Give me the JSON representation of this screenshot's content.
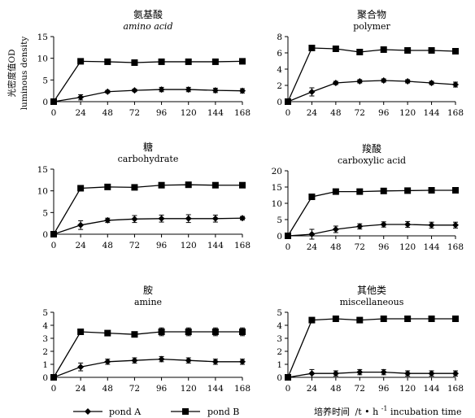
{
  "figure": {
    "y_axis_label_cn": "光密度值OD",
    "y_axis_label_en": "luminous density",
    "x_axis_label_cn": "培养时间",
    "x_axis_label_unit": "/t • h",
    "x_axis_label_sup": "-1",
    "x_axis_label_en": "incubation time"
  },
  "legend": [
    {
      "name": "pond A",
      "marker": "diamond"
    },
    {
      "name": "pond B",
      "marker": "square"
    }
  ],
  "colors": {
    "line": "#000000",
    "background": "#ffffff"
  },
  "chart_data": [
    {
      "type": "line",
      "title_cn": "氨基酸",
      "title_en": "amino acid",
      "title_en_italic": true,
      "x": [
        0,
        24,
        48,
        72,
        96,
        120,
        144,
        168
      ],
      "x_ticks": [
        "0",
        "24",
        "48",
        "72",
        "96",
        "120",
        "144",
        "168"
      ],
      "ylim": [
        0,
        15
      ],
      "y_ticks": [
        "0",
        "5",
        "10",
        "15"
      ],
      "series": [
        {
          "name": "pond A",
          "values": [
            0,
            1.0,
            2.3,
            2.6,
            2.8,
            2.8,
            2.6,
            2.5
          ],
          "errors": [
            0,
            0.6,
            0.3,
            0.3,
            0.5,
            0.5,
            0.5,
            0.5
          ]
        },
        {
          "name": "pond B",
          "values": [
            0,
            9.3,
            9.2,
            9.0,
            9.2,
            9.2,
            9.2,
            9.3
          ],
          "errors": [
            0,
            0.3,
            0.3,
            0.5,
            0.5,
            0.5,
            0.5,
            0.5
          ]
        }
      ]
    },
    {
      "type": "line",
      "title_cn": "聚合物",
      "title_en": "polymer",
      "title_en_italic": false,
      "x": [
        0,
        24,
        48,
        72,
        96,
        120,
        144,
        168
      ],
      "x_ticks": [
        "0",
        "24",
        "48",
        "72",
        "96",
        "120",
        "144",
        "168"
      ],
      "ylim": [
        0,
        8
      ],
      "y_ticks": [
        "0",
        "2",
        "4",
        "6",
        "8"
      ],
      "series": [
        {
          "name": "pond A",
          "values": [
            0,
            1.2,
            2.3,
            2.5,
            2.6,
            2.5,
            2.3,
            2.1
          ],
          "errors": [
            0,
            0.5,
            0.2,
            0.2,
            0.2,
            0.2,
            0.2,
            0.3
          ]
        },
        {
          "name": "pond B",
          "values": [
            0,
            6.6,
            6.5,
            6.1,
            6.4,
            6.3,
            6.3,
            6.2
          ],
          "errors": [
            0,
            0.2,
            0.2,
            0.2,
            0.2,
            0.2,
            0.2,
            0.2
          ]
        }
      ]
    },
    {
      "type": "line",
      "title_cn": "糖",
      "title_en": "carbohydrate",
      "title_en_italic": false,
      "x": [
        0,
        24,
        48,
        72,
        96,
        120,
        144,
        168
      ],
      "x_ticks": [
        "0",
        "24",
        "48",
        "72",
        "96",
        "120",
        "144",
        "168"
      ],
      "ylim": [
        0,
        15
      ],
      "y_ticks": [
        "0",
        "5",
        "10",
        "15"
      ],
      "series": [
        {
          "name": "pond A",
          "values": [
            0,
            2.1,
            3.2,
            3.5,
            3.6,
            3.6,
            3.6,
            3.7
          ],
          "errors": [
            0,
            1.0,
            0.5,
            0.8,
            0.8,
            0.9,
            0.8,
            0.4
          ]
        },
        {
          "name": "pond B",
          "values": [
            0,
            10.6,
            10.9,
            10.8,
            11.3,
            11.4,
            11.3,
            11.3
          ],
          "errors": [
            0,
            0.4,
            0.4,
            0.4,
            0.4,
            0.5,
            0.4,
            0.4
          ]
        }
      ]
    },
    {
      "type": "line",
      "title_cn": "羧酸",
      "title_en": "carboxylic acid",
      "title_en_italic": false,
      "x": [
        0,
        24,
        48,
        72,
        96,
        120,
        144,
        168
      ],
      "x_ticks": [
        "0",
        "24",
        "48",
        "72",
        "96",
        "120",
        "144",
        "168"
      ],
      "ylim": [
        0,
        20
      ],
      "y_ticks": [
        "0",
        "5",
        "10",
        "15",
        "20"
      ],
      "series": [
        {
          "name": "pond A",
          "values": [
            0,
            0.5,
            2.0,
            2.9,
            3.5,
            3.5,
            3.3,
            3.3
          ],
          "errors": [
            0,
            1.5,
            1.0,
            0.8,
            0.8,
            0.9,
            0.9,
            0.9
          ]
        },
        {
          "name": "pond B",
          "values": [
            0,
            12.0,
            13.6,
            13.6,
            13.8,
            13.9,
            14.0,
            14.0
          ],
          "errors": [
            0,
            0.5,
            0.4,
            0.4,
            0.4,
            0.4,
            0.4,
            0.4
          ]
        }
      ]
    },
    {
      "type": "line",
      "title_cn": "胺",
      "title_en": "amine",
      "title_en_italic": false,
      "x": [
        0,
        24,
        48,
        72,
        96,
        120,
        144,
        168
      ],
      "x_ticks": [
        "0",
        "24",
        "48",
        "72",
        "96",
        "120",
        "144",
        "168"
      ],
      "ylim": [
        0,
        5
      ],
      "y_ticks": [
        "0",
        "1",
        "2",
        "3",
        "4",
        "5"
      ],
      "series": [
        {
          "name": "pond A",
          "values": [
            0,
            0.8,
            1.2,
            1.3,
            1.4,
            1.3,
            1.2,
            1.2
          ],
          "errors": [
            0,
            0.3,
            0.2,
            0.2,
            0.2,
            0.2,
            0.2,
            0.2
          ]
        },
        {
          "name": "pond B",
          "values": [
            0,
            3.5,
            3.4,
            3.3,
            3.5,
            3.5,
            3.5,
            3.5
          ],
          "errors": [
            0,
            0.1,
            0.1,
            0.1,
            0.3,
            0.3,
            0.3,
            0.3
          ]
        }
      ]
    },
    {
      "type": "line",
      "title_cn": "其他类",
      "title_en": "miscellaneous",
      "title_en_italic": false,
      "x": [
        0,
        24,
        48,
        72,
        96,
        120,
        144,
        168
      ],
      "x_ticks": [
        "0",
        "24",
        "48",
        "72",
        "96",
        "120",
        "144",
        "168"
      ],
      "ylim": [
        0,
        5
      ],
      "y_ticks": [
        "0",
        "1",
        "2",
        "3",
        "4",
        "5"
      ],
      "series": [
        {
          "name": "pond A",
          "values": [
            0,
            0.3,
            0.3,
            0.4,
            0.4,
            0.3,
            0.3,
            0.3
          ],
          "errors": [
            0,
            0.3,
            0.2,
            0.2,
            0.2,
            0.2,
            0.2,
            0.2
          ]
        },
        {
          "name": "pond B",
          "values": [
            0,
            4.4,
            4.5,
            4.4,
            4.5,
            4.5,
            4.5,
            4.5
          ],
          "errors": [
            0,
            0.1,
            0.1,
            0.1,
            0.1,
            0.1,
            0.1,
            0.1
          ]
        }
      ]
    }
  ]
}
